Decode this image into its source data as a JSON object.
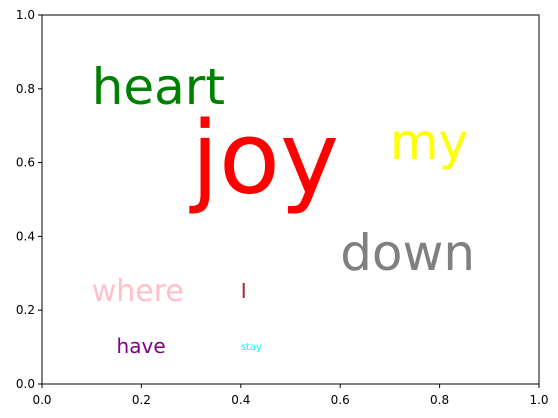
{
  "chart_data": {
    "type": "scatter",
    "title": "",
    "xlabel": "",
    "ylabel": "",
    "xlim": [
      0.0,
      1.0
    ],
    "ylim": [
      0.0,
      1.0
    ],
    "grid": false,
    "xticks": [
      "0.0",
      "0.2",
      "0.4",
      "0.6",
      "0.8",
      "1.0"
    ],
    "yticks": [
      "0.0",
      "0.2",
      "0.4",
      "0.6",
      "0.8",
      "1.0"
    ],
    "words": [
      {
        "text": "heart",
        "x": 0.1,
        "y": 0.8,
        "color": "#008000",
        "size": 50,
        "anchor": "start"
      },
      {
        "text": "joy",
        "x": 0.3,
        "y": 0.6,
        "color": "#ff0000",
        "size": 100,
        "anchor": "start"
      },
      {
        "text": "my",
        "x": 0.7,
        "y": 0.65,
        "color": "#ffff00",
        "size": 50,
        "anchor": "start"
      },
      {
        "text": "down",
        "x": 0.6,
        "y": 0.35,
        "color": "#808080",
        "size": 50,
        "anchor": "start"
      },
      {
        "text": "where",
        "x": 0.1,
        "y": 0.25,
        "color": "#ffc0cb",
        "size": 30,
        "anchor": "start"
      },
      {
        "text": "I",
        "x": 0.4,
        "y": 0.25,
        "color": "#a52a2a",
        "size": 20,
        "anchor": "start"
      },
      {
        "text": "stay",
        "x": 0.4,
        "y": 0.1,
        "color": "#00ffff",
        "size": 10,
        "anchor": "start"
      },
      {
        "text": "have",
        "x": 0.15,
        "y": 0.1,
        "color": "#800080",
        "size": 20,
        "anchor": "start"
      }
    ]
  }
}
